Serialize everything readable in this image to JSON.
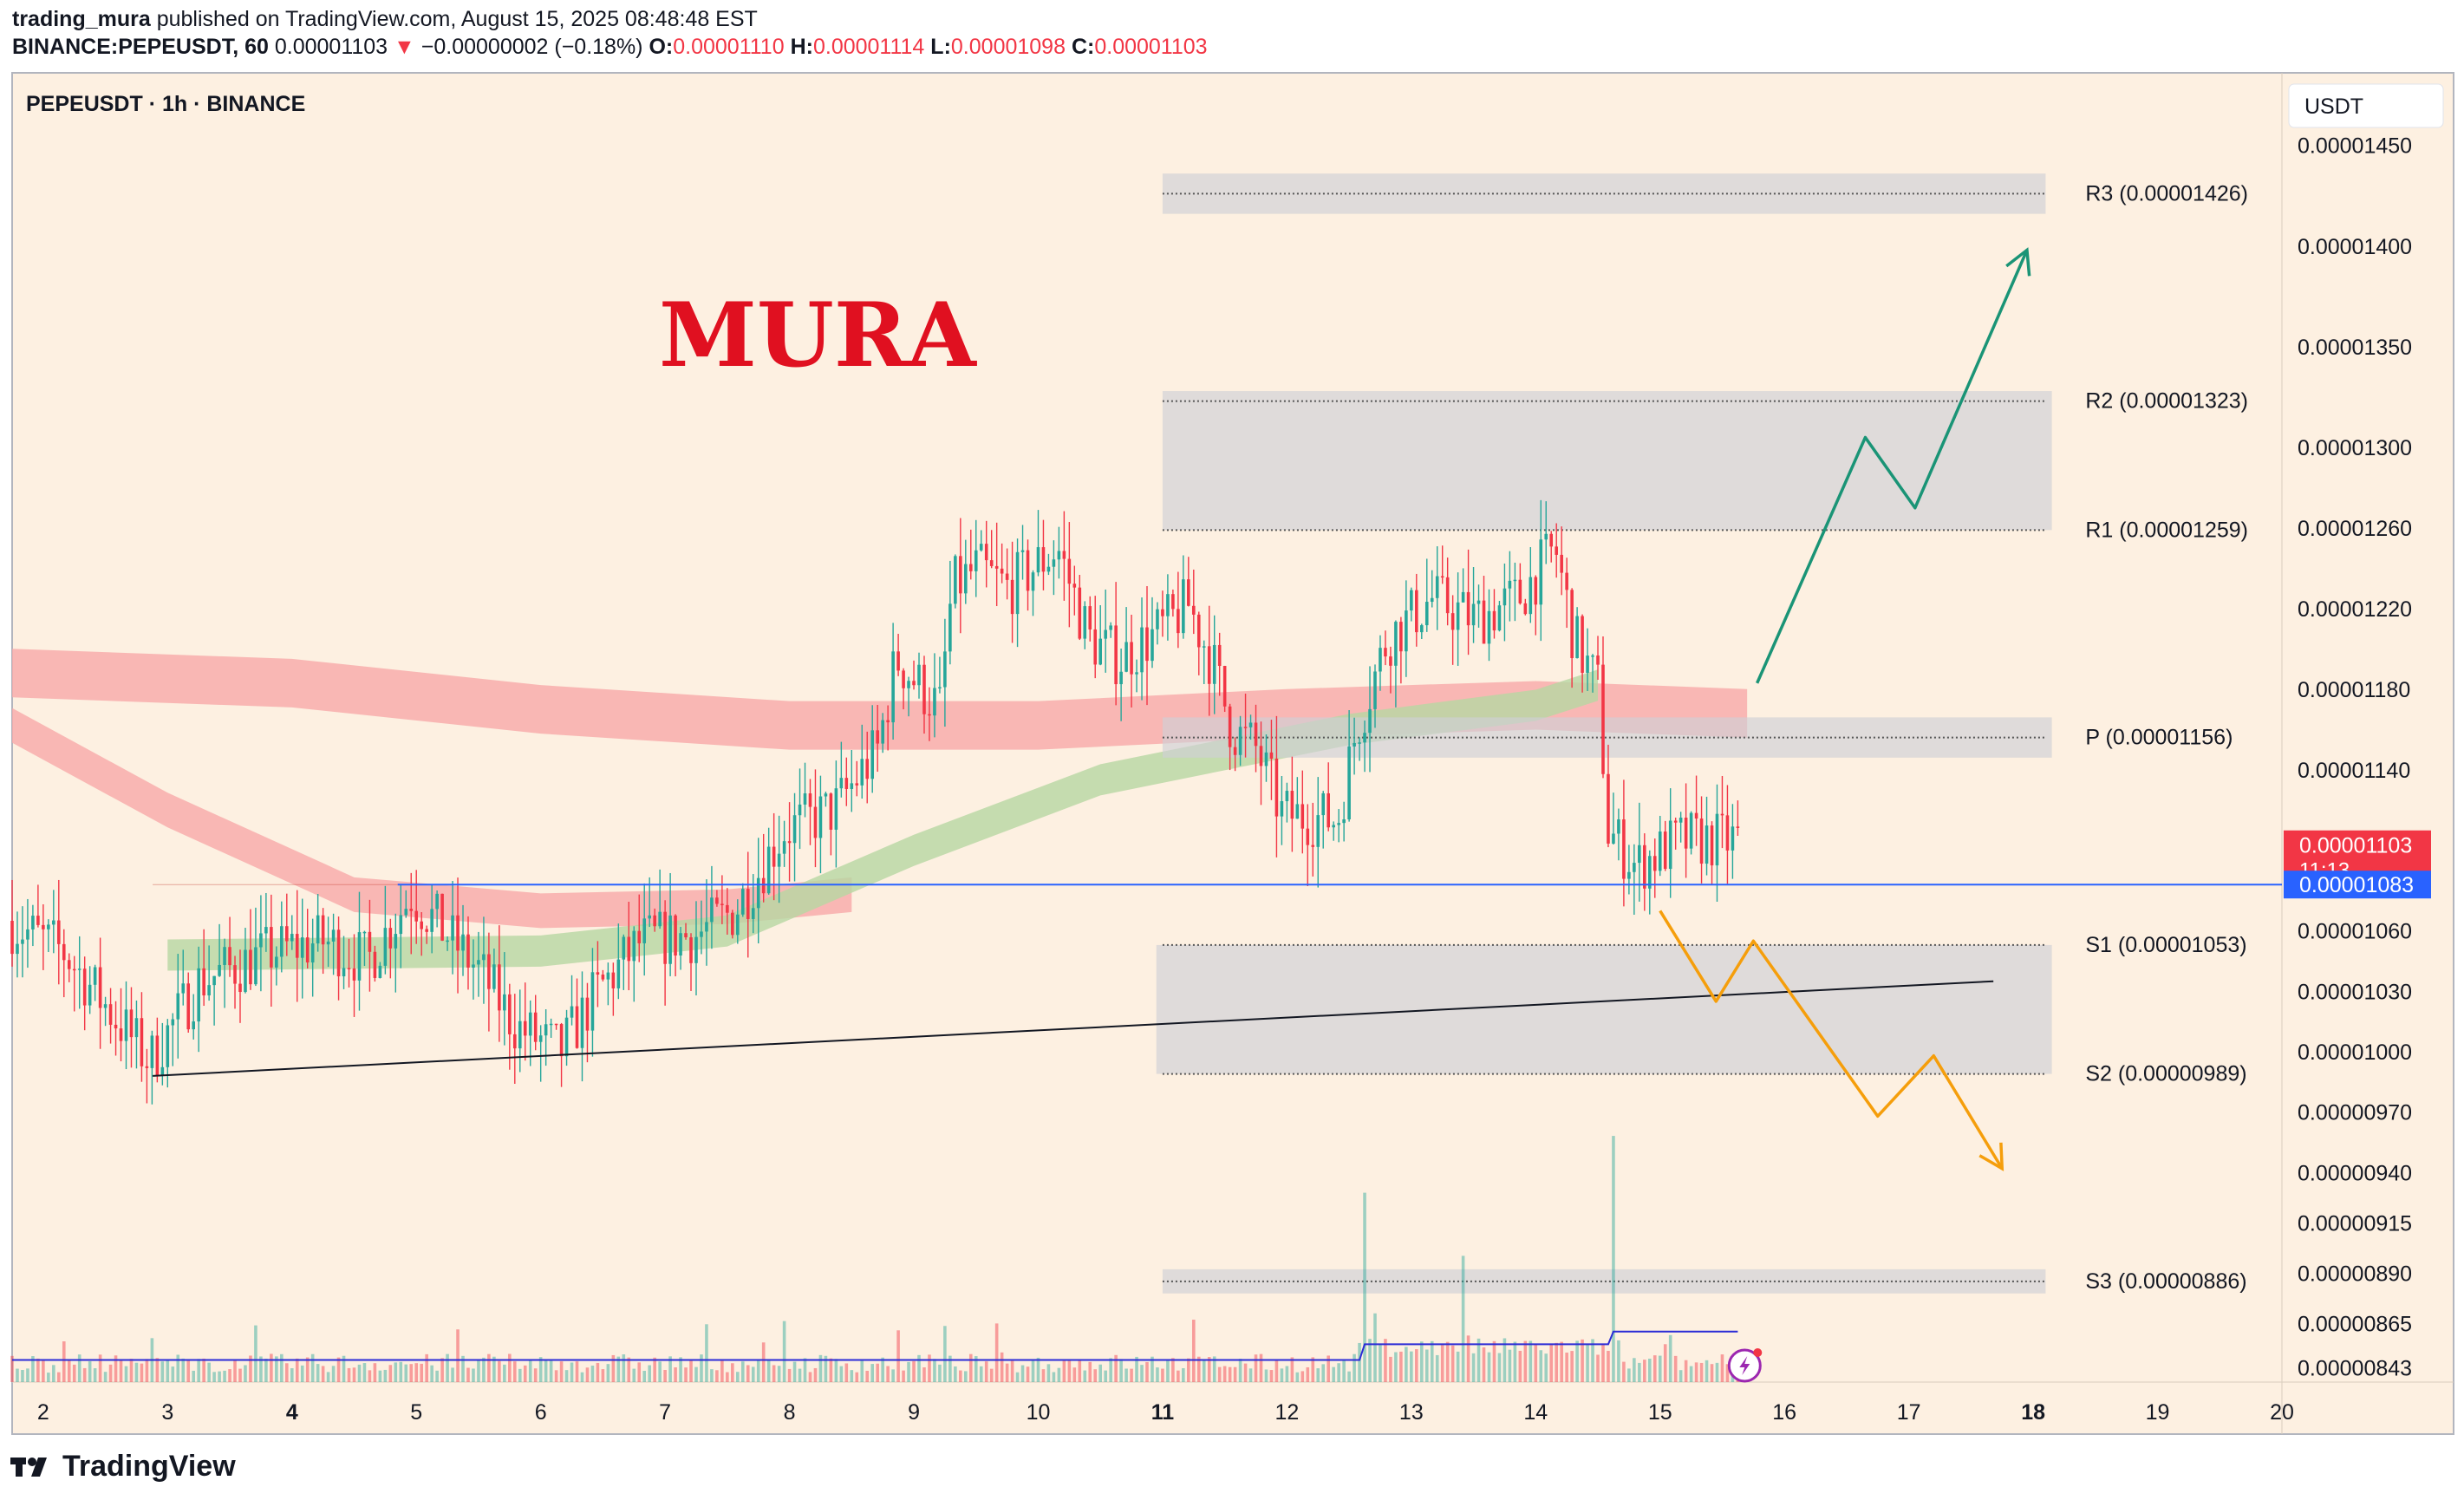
{
  "header": {
    "author": "trading_mura",
    "published": "published on TradingView.com, August 15, 2025 08:48:48 EST",
    "symbol": "BINANCE:PEPEUSDT, 60",
    "last": "0.00001103",
    "change_arrow": "▼",
    "change": "−0.00000002 (−0.18%)",
    "o_label": "O:",
    "o_value": "0.00001110",
    "h_label": "H:",
    "h_value": "0.00001114",
    "l_label": "L:",
    "l_value": "0.00001098",
    "c_label": "C:",
    "c_value": "0.00001103"
  },
  "chart_title": "PEPEUSDT · 1h · BINANCE",
  "currency_button": "USDT",
  "watermark": "MURA",
  "price_tag": {
    "value": "0.00001103",
    "countdown": "11:13"
  },
  "line_tag": {
    "value": "0.00001083"
  },
  "footer": {
    "logo_text": "TradingView"
  },
  "colors": {
    "background": "#fdf0e1",
    "up": "#26a69a",
    "down": "#f23645",
    "bullish_arrow": "#1a9476",
    "bearish_arrow": "#f59e0b",
    "horizontal_line": "#2962ff",
    "volume_ma": "#2b2bd6",
    "ribbon_red": "#f8a9a9",
    "ribbon_green": "#b6d7a3"
  },
  "chart_data": {
    "type": "candlestick",
    "interval": "1h",
    "x_axis": {
      "labels": [
        "2",
        "3",
        "4",
        "5",
        "6",
        "7",
        "8",
        "9",
        "10",
        "11",
        "12",
        "13",
        "14",
        "15",
        "16",
        "17",
        "18",
        "19",
        "20"
      ],
      "bold": [
        "4",
        "11",
        "18"
      ],
      "range": [
        1.75,
        20.0
      ]
    },
    "y_axis": {
      "labels": [
        "0.00001450",
        "0.00001400",
        "0.00001350",
        "0.00001300",
        "0.00001260",
        "0.00001220",
        "0.00001180",
        "0.00001140",
        "0.00001060",
        "0.00001030",
        "0.00001000",
        "0.00000970",
        "0.00000940",
        "0.00000915",
        "0.00000890",
        "0.00000865",
        "0.00000843"
      ],
      "range": [
        8.36e-06,
        1.486e-05
      ]
    },
    "levels": [
      {
        "label": "R3 (0.00001426)",
        "value": 1.426e-05
      },
      {
        "label": "R2 (0.00001323)",
        "value": 1.323e-05
      },
      {
        "label": "R1 (0.00001259)",
        "value": 1.259e-05
      },
      {
        "label": "P (0.00001156)",
        "value": 1.156e-05
      },
      {
        "label": "S1 (0.00001053)",
        "value": 1.053e-05
      },
      {
        "label": "S2 (0.00000989)",
        "value": 9.89e-06
      },
      {
        "label": "S3 (0.00000886)",
        "value": 8.86e-06
      }
    ],
    "zones": [
      {
        "from": 1.416e-05,
        "to": 1.436e-05,
        "x": [
          11.0,
          18.1
        ]
      },
      {
        "from": 1.259e-05,
        "to": 1.328e-05,
        "x": [
          11.0,
          18.15
        ]
      },
      {
        "from": 1.146e-05,
        "to": 1.166e-05,
        "x": [
          11.0,
          18.15
        ]
      },
      {
        "from": 9.89e-06,
        "to": 1.053e-05,
        "x": [
          10.95,
          18.15
        ]
      },
      {
        "from": 8.8e-06,
        "to": 8.92e-06,
        "x": [
          11.0,
          18.1
        ]
      }
    ],
    "horizontal_line": {
      "value": 1.083e-05,
      "x_start": 4.85
    },
    "trendline": {
      "points": [
        [
          2.88,
          9.88e-06
        ],
        [
          17.68,
          1.035e-05
        ]
      ]
    },
    "bullish_path": [
      [
        15.78,
        1.183e-05
      ],
      [
        16.65,
        1.305e-05
      ],
      [
        17.05,
        1.27e-05
      ],
      [
        17.95,
        1.398e-05
      ]
    ],
    "bearish_path": [
      [
        15.0,
        1.07e-05
      ],
      [
        15.45,
        1.025e-05
      ],
      [
        15.75,
        1.055e-05
      ],
      [
        16.75,
        9.68e-06
      ],
      [
        17.2,
        9.98e-06
      ],
      [
        17.75,
        9.42e-06
      ]
    ],
    "key_points": [
      [
        1.75,
        1.065e-05
      ],
      [
        2.2,
        1.05e-05
      ],
      [
        2.9,
        9.95e-06
      ],
      [
        3.3,
        1.035e-05
      ],
      [
        3.9,
        1.05e-05
      ],
      [
        4.3,
        1.055e-05
      ],
      [
        4.65,
        1.045e-05
      ],
      [
        5.0,
        1.078e-05
      ],
      [
        5.55,
        1.04e-05
      ],
      [
        5.85,
        1.012e-05
      ],
      [
        6.2,
        1e-05
      ],
      [
        6.5,
        1.03e-05
      ],
      [
        6.85,
        1.055e-05
      ],
      [
        7.3,
        1.058e-05
      ],
      [
        7.6,
        1.07e-05
      ],
      [
        8.0,
        1.11e-05
      ],
      [
        8.4,
        1.12e-05
      ],
      [
        8.75,
        1.15e-05
      ],
      [
        8.9,
        1.195e-05
      ],
      [
        9.25,
        1.17e-05
      ],
      [
        9.35,
        1.23e-05
      ],
      [
        9.55,
        1.24e-05
      ],
      [
        9.8,
        1.23e-05
      ],
      [
        10.2,
        1.25e-05
      ],
      [
        10.45,
        1.205e-05
      ],
      [
        10.7,
        1.195e-05
      ],
      [
        11.0,
        1.208e-05
      ],
      [
        11.25,
        1.222e-05
      ],
      [
        11.45,
        1.192e-05
      ],
      [
        11.6,
        1.16e-05
      ],
      [
        11.8,
        1.15e-05
      ],
      [
        12.0,
        1.118e-05
      ],
      [
        12.45,
        1.115e-05
      ],
      [
        12.6,
        1.16e-05
      ],
      [
        12.85,
        1.205e-05
      ],
      [
        13.2,
        1.225e-05
      ],
      [
        13.55,
        1.215e-05
      ],
      [
        13.9,
        1.225e-05
      ],
      [
        14.2,
        1.25e-05
      ],
      [
        14.35,
        1.205e-05
      ],
      [
        14.55,
        1.18e-05
      ],
      [
        14.62,
        1.11e-05
      ],
      [
        14.85,
        1.092e-05
      ],
      [
        15.2,
        1.105e-05
      ],
      [
        15.65,
        1.105e-05
      ]
    ],
    "ribbons": {
      "red_long": [
        [
          1.75,
          1.188e-05
        ],
        [
          4.0,
          1.183e-05
        ],
        [
          6.0,
          1.17e-05
        ],
        [
          8.0,
          1.162e-05
        ],
        [
          10.0,
          1.162e-05
        ],
        [
          12.0,
          1.168e-05
        ],
        [
          14.0,
          1.172e-05
        ],
        [
          15.7,
          1.168e-05
        ]
      ],
      "red_short": [
        [
          1.75,
          1.162e-05
        ],
        [
          3.0,
          1.12e-05
        ],
        [
          4.5,
          1.078e-05
        ],
        [
          6.0,
          1.07e-05
        ],
        [
          7.5,
          1.072e-05
        ],
        [
          8.5,
          1.078e-05
        ]
      ],
      "green": [
        [
          3.0,
          1.048e-05
        ],
        [
          6.0,
          1.05e-05
        ],
        [
          7.5,
          1.06e-05
        ],
        [
          9.0,
          1.1e-05
        ],
        [
          10.5,
          1.135e-05
        ],
        [
          12.5,
          1.16e-05
        ],
        [
          14.0,
          1.172e-05
        ],
        [
          14.5,
          1.182e-05
        ]
      ]
    },
    "volume": {
      "spike_x": [
        12.63,
        13.42,
        14.62
      ],
      "spike_height": [
        0.55,
        0.35,
        0.73
      ]
    }
  }
}
